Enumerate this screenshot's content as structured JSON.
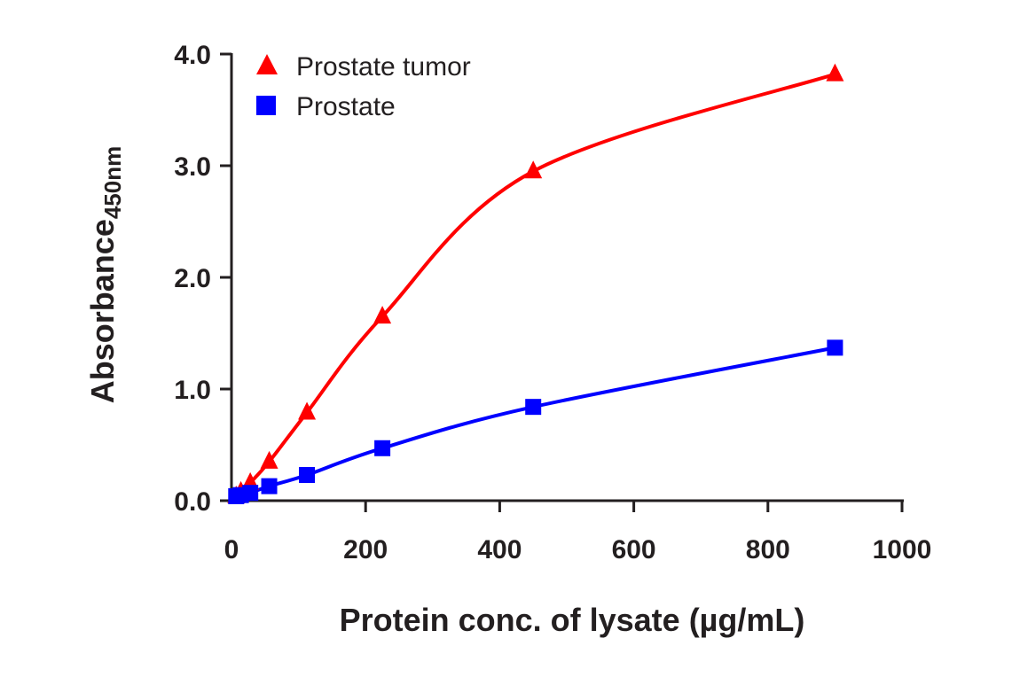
{
  "chart_data": {
    "type": "line",
    "title": "",
    "xlabel": "Protein conc. of lysate (µg/mL)",
    "ylabel": "Absorbance",
    "ylabel_subscript": "450nm",
    "xlim": [
      0,
      1000
    ],
    "ylim": [
      0,
      4.0
    ],
    "xticks": [
      0,
      200,
      400,
      600,
      800,
      1000
    ],
    "xtick_labels": [
      "0",
      "200",
      "400",
      "600",
      "800",
      "1000"
    ],
    "yticks": [
      0,
      1,
      2,
      3,
      4
    ],
    "ytick_labels": [
      "0.0",
      "1.0",
      "2.0",
      "3.0",
      "4.0"
    ],
    "grid": false,
    "legend_position": "top-left",
    "series": [
      {
        "name": "Prostate tumor",
        "marker": "triangle",
        "color": "#ff0000",
        "x": [
          7,
          14,
          28,
          56.25,
          112.5,
          225,
          450,
          900
        ],
        "y": [
          0.04,
          0.08,
          0.16,
          0.35,
          0.79,
          1.65,
          2.95,
          3.82
        ]
      },
      {
        "name": "Prostate",
        "marker": "square",
        "color": "#0000ff",
        "x": [
          7,
          14,
          28,
          56.25,
          112.5,
          225,
          450,
          900
        ],
        "y": [
          0.04,
          0.05,
          0.07,
          0.13,
          0.23,
          0.47,
          0.84,
          1.37
        ]
      }
    ]
  }
}
